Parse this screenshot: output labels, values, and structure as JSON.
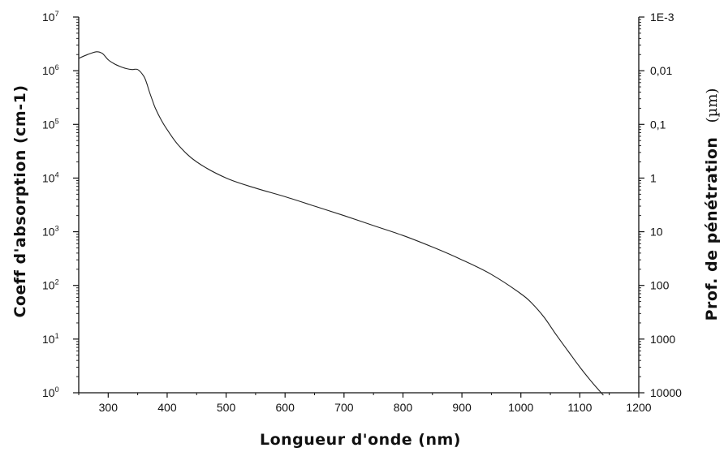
{
  "chart_data": {
    "type": "line",
    "xlabel": "Longueur d'onde (nm)",
    "ylabel_left": "Coeff d'absorption (cm-1)",
    "ylabel_right_text": "Prof. de pénétration",
    "ylabel_right_unit": "(µm)",
    "x_range": [
      250,
      1200
    ],
    "x_ticks": [
      300,
      400,
      500,
      600,
      700,
      800,
      900,
      1000,
      1100,
      1200
    ],
    "y_scale": "log",
    "y_range_exponent": [
      0,
      7
    ],
    "y_left_ticks": [
      {
        "base": "10",
        "exp": "0"
      },
      {
        "base": "10",
        "exp": "1"
      },
      {
        "base": "10",
        "exp": "2"
      },
      {
        "base": "10",
        "exp": "3"
      },
      {
        "base": "10",
        "exp": "4"
      },
      {
        "base": "10",
        "exp": "5"
      },
      {
        "base": "10",
        "exp": "6"
      },
      {
        "base": "10",
        "exp": "7"
      }
    ],
    "y_right_ticks": [
      "10000",
      "1000",
      "100",
      "10",
      "1",
      "0,1",
      "0,01",
      "1E-3"
    ],
    "grid": false,
    "series": [
      {
        "x": [
          250,
          265,
          280,
          290,
          300,
          310,
          320,
          330,
          340,
          350,
          360,
          365,
          370,
          375,
          380,
          390,
          400,
          420,
          450,
          500,
          550,
          600,
          650,
          700,
          750,
          800,
          850,
          900,
          950,
          1000,
          1020,
          1040,
          1060,
          1080,
          1100,
          1120,
          1140
        ],
        "y": [
          1700000.0,
          2000000.0,
          2250000.0,
          2100000.0,
          1600000.0,
          1350000.0,
          1200000.0,
          1100000.0,
          1050000.0,
          1050000.0,
          800000.0,
          600000.0,
          400000.0,
          280000.0,
          200000.0,
          120000.0,
          80000.0,
          40000.0,
          20000.0,
          10000.0,
          6500.0,
          4500.0,
          3000.0,
          2000.0,
          1300.0,
          850.0,
          520.0,
          300.0,
          160.0,
          70.0,
          45.0,
          25.0,
          12.0,
          6.0,
          3.0,
          1.6,
          0.9
        ]
      }
    ]
  }
}
